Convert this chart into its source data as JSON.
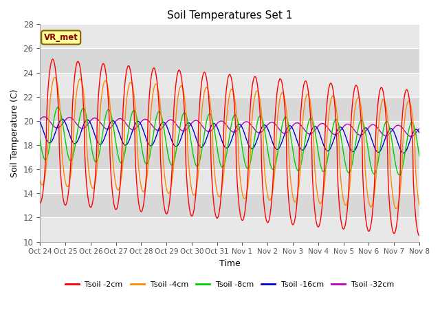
{
  "title": "Soil Temperatures Set 1",
  "xlabel": "Time",
  "ylabel": "Soil Temperature (C)",
  "ylim": [
    10,
    28
  ],
  "yticks": [
    10,
    12,
    14,
    16,
    18,
    20,
    22,
    24,
    26,
    28
  ],
  "xtick_labels": [
    "Oct 24",
    "Oct 25",
    "Oct 26",
    "Oct 27",
    "Oct 28",
    "Oct 29",
    "Oct 30",
    "Oct 31",
    "Nov 1",
    "Nov 2",
    "Nov 3",
    "Nov 4",
    "Nov 5",
    "Nov 6",
    "Nov 7",
    "Nov 8"
  ],
  "colors": {
    "Tsoil -2cm": "#ff0000",
    "Tsoil -4cm": "#ff8800",
    "Tsoil -8cm": "#00cc00",
    "Tsoil -16cm": "#0000cc",
    "Tsoil -32cm": "#bb00bb"
  },
  "annotation_text": "VR_met",
  "annotation_color": "#8B0000",
  "annotation_bg": "#ffff99",
  "plot_bg": "#e8e8e8",
  "fig_bg": "#ffffff",
  "band_colors": [
    "#e8e8e8",
    "#d8d8d8"
  ],
  "series": {
    "Tsoil -2cm": {
      "mean": 19.2,
      "amp": 6.0,
      "lag_hours": 0,
      "amp_mod": 2.5,
      "trend": -0.18,
      "period_hours": 24
    },
    "Tsoil -4cm": {
      "mean": 19.2,
      "amp": 4.5,
      "lag_hours": 2,
      "amp_mod": 1.5,
      "trend": -0.14,
      "period_hours": 24
    },
    "Tsoil -8cm": {
      "mean": 19.0,
      "amp": 2.2,
      "lag_hours": 5,
      "amp_mod": 0.5,
      "trend": -0.09,
      "period_hours": 24
    },
    "Tsoil -16cm": {
      "mean": 19.2,
      "amp": 1.0,
      "lag_hours": 9,
      "amp_mod": 0.2,
      "trend": -0.06,
      "period_hours": 24
    },
    "Tsoil -32cm": {
      "mean": 19.9,
      "amp": 0.45,
      "lag_hours": 16,
      "amp_mod": 0.1,
      "trend": -0.05,
      "period_hours": 24
    }
  }
}
